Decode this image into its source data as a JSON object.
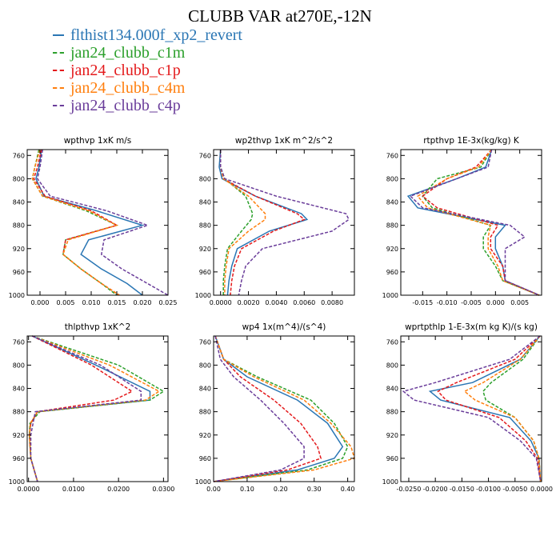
{
  "title": "CLUBB VAR at270E,-12N",
  "legend": [
    {
      "name": "flthist134.000f_xp2_revert",
      "color": "#2a76b4",
      "dashed": false
    },
    {
      "name": "jan24_clubb_c1m",
      "color": "#2ca02c",
      "dashed": true
    },
    {
      "name": "jan24_clubb_c1p",
      "color": "#e41a1c",
      "dashed": true
    },
    {
      "name": "jan24_clubb_c4m",
      "color": "#ff7f0e",
      "dashed": true
    },
    {
      "name": "jan24_clubb_c4p",
      "color": "#6a3d9a",
      "dashed": true
    }
  ],
  "chart_data": [
    {
      "type": "line",
      "title": "wpthvp  1xK m/s",
      "xlim": [
        -0.0025,
        0.025
      ],
      "ylim": [
        1000,
        750
      ],
      "xticks": [
        0.0,
        0.005,
        0.01,
        0.015,
        0.02,
        0.025
      ],
      "xticklabels": [
        "0.000",
        "0.005",
        "0.010",
        "0.015",
        "0.020",
        "0.025"
      ],
      "yticks": [
        760,
        800,
        840,
        880,
        920,
        960,
        1000
      ],
      "y": [
        750,
        780,
        800,
        830,
        855,
        880,
        905,
        930,
        955,
        980,
        1000
      ],
      "series": [
        {
          "values": [
            0.0003,
            -0.0002,
            -0.0008,
            0.0008,
            0.011,
            0.02,
            0.0095,
            0.008,
            0.012,
            0.017,
            0.02
          ]
        },
        {
          "values": [
            -0.0002,
            -0.001,
            -0.0015,
            0.0005,
            0.009,
            0.015,
            0.005,
            0.0045,
            0.008,
            0.012,
            0.015
          ]
        },
        {
          "values": [
            0.0003,
            -0.0005,
            -0.0012,
            0.001,
            0.01,
            0.015,
            0.005,
            0.0045,
            0.008,
            0.012,
            0.0155
          ]
        },
        {
          "values": [
            0.0,
            -0.001,
            -0.0015,
            0.0005,
            0.0095,
            0.015,
            0.0055,
            0.0045,
            0.008,
            0.012,
            0.0155
          ]
        },
        {
          "values": [
            0.0005,
            0.0,
            -0.0005,
            0.002,
            0.013,
            0.021,
            0.0125,
            0.012,
            0.016,
            0.021,
            0.025
          ]
        }
      ]
    },
    {
      "type": "line",
      "title": "wp2thvp  1xK m^2/s^2",
      "xlim": [
        -0.0005,
        0.0096
      ],
      "ylim": [
        1000,
        750
      ],
      "xticks": [
        0.0,
        0.002,
        0.004,
        0.006,
        0.008
      ],
      "xticklabels": [
        "0.0000",
        "0.0020",
        "0.0040",
        "0.0060",
        "0.0080"
      ],
      "yticks": [
        760,
        800,
        840,
        880,
        920,
        960,
        1000
      ],
      "y": [
        750,
        780,
        800,
        830,
        860,
        870,
        890,
        920,
        950,
        975,
        1000
      ],
      "series": [
        {
          "values": [
            0.0,
            -0.0001,
            0.0001,
            0.0025,
            0.0058,
            0.0062,
            0.0035,
            0.0012,
            0.0008,
            0.0006,
            0.0005
          ]
        },
        {
          "values": [
            0.0,
            0.0,
            0.0003,
            0.0018,
            0.0023,
            0.0022,
            0.0015,
            0.0005,
            0.0003,
            0.0002,
            0.0002
          ]
        },
        {
          "values": [
            0.0,
            0.0,
            0.0002,
            0.0025,
            0.0055,
            0.006,
            0.0038,
            0.0015,
            0.001,
            0.0008,
            0.0007
          ]
        },
        {
          "values": [
            0.0,
            0.0,
            0.0002,
            0.002,
            0.0032,
            0.0032,
            0.002,
            0.0006,
            0.0004,
            0.0003,
            0.0003
          ]
        },
        {
          "values": [
            0.0,
            0.0,
            0.0003,
            0.004,
            0.009,
            0.0092,
            0.008,
            0.003,
            0.0018,
            0.0015,
            0.0013
          ]
        }
      ]
    },
    {
      "type": "line",
      "title": "rtpthvp  1E-3x(kg/kg) K",
      "xlim": [
        -0.0195,
        0.0095
      ],
      "ylim": [
        1000,
        750
      ],
      "xticks": [
        -0.015,
        -0.01,
        -0.005,
        0.0,
        0.005
      ],
      "xticklabels": [
        "-0.015",
        "-0.010",
        "-0.005",
        "0.000",
        "0.005"
      ],
      "yticks": [
        760,
        800,
        840,
        880,
        920,
        960,
        1000
      ],
      "y": [
        750,
        780,
        800,
        830,
        850,
        880,
        900,
        920,
        950,
        975,
        1000
      ],
      "series": [
        {
          "values": [
            -0.0008,
            -0.002,
            -0.008,
            -0.018,
            -0.016,
            0.002,
            0.0,
            0.0,
            0.0015,
            0.002,
            0.009
          ]
        },
        {
          "values": [
            -0.0008,
            -0.003,
            -0.012,
            -0.015,
            -0.013,
            -0.001,
            -0.0025,
            -0.0025,
            0.0,
            0.0015,
            0.009
          ]
        },
        {
          "values": [
            -0.0008,
            -0.004,
            -0.01,
            -0.015,
            -0.012,
            0.0005,
            -0.001,
            -0.001,
            0.0015,
            0.002,
            0.009
          ]
        },
        {
          "values": [
            -0.0008,
            -0.0035,
            -0.01,
            -0.016,
            -0.014,
            -0.001,
            -0.0015,
            -0.0015,
            0.0005,
            0.0015,
            0.009
          ]
        },
        {
          "values": [
            -0.0008,
            -0.0015,
            -0.008,
            -0.0175,
            -0.015,
            0.003,
            0.006,
            0.002,
            0.002,
            0.002,
            0.009
          ]
        }
      ]
    },
    {
      "type": "line",
      "title": "thlpthvp  1xK^2",
      "xlim": [
        -0.0003,
        0.031
      ],
      "ylim": [
        1000,
        750
      ],
      "xticks": [
        0.0,
        0.01,
        0.02,
        0.03
      ],
      "xticklabels": [
        "0.0000",
        "0.0100",
        "0.0200",
        "0.0300"
      ],
      "yticks": [
        760,
        800,
        840,
        880,
        920,
        960,
        1000
      ],
      "y": [
        750,
        800,
        845,
        860,
        880,
        900,
        920,
        960,
        1000
      ],
      "series": [
        {
          "values": [
            0.0008,
            0.015,
            0.027,
            0.027,
            0.002,
            0.0005,
            0.0002,
            0.0005,
            0.002
          ]
        },
        {
          "values": [
            0.0008,
            0.02,
            0.03,
            0.027,
            0.0025,
            0.0003,
            0.0002,
            0.0005,
            0.002
          ]
        },
        {
          "values": [
            0.0008,
            0.014,
            0.023,
            0.019,
            0.002,
            0.0005,
            0.0002,
            0.0005,
            0.002
          ]
        },
        {
          "values": [
            0.0008,
            0.018,
            0.029,
            0.026,
            0.002,
            0.0004,
            0.0002,
            0.0005,
            0.002
          ]
        },
        {
          "values": [
            0.0008,
            0.016,
            0.025,
            0.025,
            0.0015,
            0.001,
            0.0005,
            0.0005,
            0.002
          ]
        }
      ]
    },
    {
      "type": "line",
      "title": "wp4  1x(m^4)/(s^4)",
      "xlim": [
        0.0,
        0.42
      ],
      "ylim": [
        1000,
        750
      ],
      "xticks": [
        0.0,
        0.1,
        0.2,
        0.3,
        0.4
      ],
      "xticklabels": [
        "0.00",
        "0.10",
        "0.20",
        "0.30",
        "0.40"
      ],
      "yticks": [
        760,
        800,
        840,
        880,
        920,
        960,
        1000
      ],
      "y": [
        750,
        790,
        820,
        860,
        900,
        940,
        960,
        980,
        1000
      ],
      "series": [
        {
          "values": [
            0.005,
            0.03,
            0.1,
            0.25,
            0.34,
            0.385,
            0.36,
            0.25,
            0.0
          ]
        },
        {
          "values": [
            0.005,
            0.03,
            0.13,
            0.29,
            0.36,
            0.4,
            0.385,
            0.28,
            0.0
          ]
        },
        {
          "values": [
            0.005,
            0.03,
            0.08,
            0.18,
            0.26,
            0.31,
            0.32,
            0.22,
            0.0
          ]
        },
        {
          "values": [
            0.005,
            0.03,
            0.12,
            0.27,
            0.35,
            0.41,
            0.42,
            0.3,
            0.0
          ]
        },
        {
          "values": [
            0.005,
            0.02,
            0.06,
            0.14,
            0.21,
            0.27,
            0.27,
            0.2,
            0.0
          ]
        }
      ]
    },
    {
      "type": "line",
      "title": "wprtpthlp  1-E-3x(m kg K)/(s kg)",
      "xlim": [
        -0.0265,
        0.0
      ],
      "ylim": [
        1000,
        750
      ],
      "xticks": [
        -0.025,
        -0.02,
        -0.015,
        -0.01,
        -0.005,
        0.0
      ],
      "xticklabels": [
        "-0.0250",
        "-0.0200",
        "-0.0150",
        "-0.0100",
        "-0.0050",
        "0.0000"
      ],
      "yticks": [
        760,
        800,
        840,
        880,
        920,
        960,
        1000
      ],
      "y": [
        750,
        790,
        830,
        845,
        860,
        890,
        930,
        960,
        1000
      ],
      "series": [
        {
          "values": [
            -0.0003,
            -0.004,
            -0.013,
            -0.021,
            -0.019,
            -0.006,
            -0.002,
            -0.0005,
            -0.0002
          ]
        },
        {
          "values": [
            -0.0003,
            -0.0035,
            -0.0095,
            -0.011,
            -0.0105,
            -0.005,
            -0.0015,
            -0.0005,
            -0.0002
          ]
        },
        {
          "values": [
            -0.0003,
            -0.005,
            -0.016,
            -0.0195,
            -0.018,
            -0.008,
            -0.003,
            -0.0008,
            -0.0002
          ]
        },
        {
          "values": [
            -0.0003,
            -0.004,
            -0.011,
            -0.0145,
            -0.0125,
            -0.005,
            -0.0015,
            -0.0005,
            -0.0002
          ]
        },
        {
          "values": [
            -0.0003,
            -0.006,
            -0.02,
            -0.026,
            -0.024,
            -0.01,
            -0.004,
            -0.001,
            -0.0002
          ]
        }
      ]
    }
  ]
}
